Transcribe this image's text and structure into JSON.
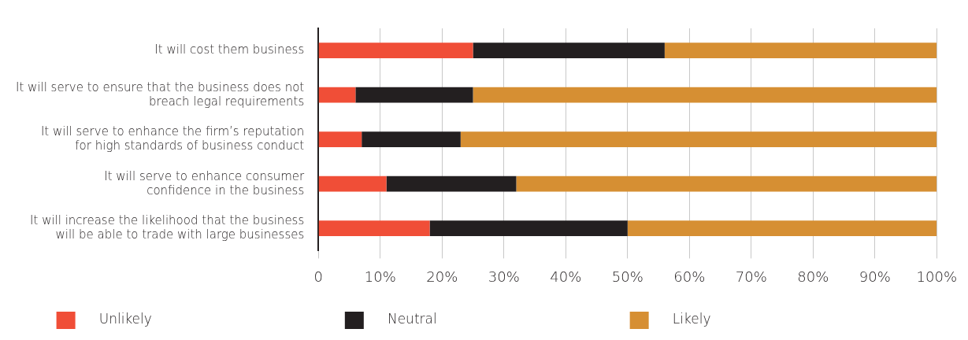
{
  "chart_data": {
    "type": "bar",
    "orientation": "horizontal",
    "stacked": true,
    "categories": [
      "It will cost them business",
      "It will serve to ensure that the business does not\nbreach legal requirements",
      "It will serve to enhance the firm’s reputation\nfor high standards of business conduct",
      "It will serve to enhance consumer\nconfidence in the business",
      "It will increase the likelihood that the business\nwill be able to trade with large businesses"
    ],
    "series": [
      {
        "name": "Unlikely",
        "color": "#f04e37",
        "values": [
          25,
          6,
          7,
          11,
          18
        ]
      },
      {
        "name": "Neutral",
        "color": "#231f20",
        "values": [
          31,
          19,
          16,
          21,
          32
        ]
      },
      {
        "name": "Likely",
        "color": "#d68f33",
        "values": [
          44,
          75,
          77,
          68,
          50
        ]
      }
    ],
    "xlim": [
      0,
      100
    ],
    "xticks": [
      {
        "value": 0,
        "label": "0"
      },
      {
        "value": 10,
        "label": "10%"
      },
      {
        "value": 20,
        "label": "20%"
      },
      {
        "value": 30,
        "label": "30%"
      },
      {
        "value": 40,
        "label": "40%"
      },
      {
        "value": 50,
        "label": "50%"
      },
      {
        "value": 60,
        "label": "60%"
      },
      {
        "value": 70,
        "label": "70%"
      },
      {
        "value": 80,
        "label": "80%"
      },
      {
        "value": 90,
        "label": "90%"
      },
      {
        "value": 100,
        "label": "100%"
      }
    ],
    "grid": "x",
    "legend": "bottom"
  }
}
